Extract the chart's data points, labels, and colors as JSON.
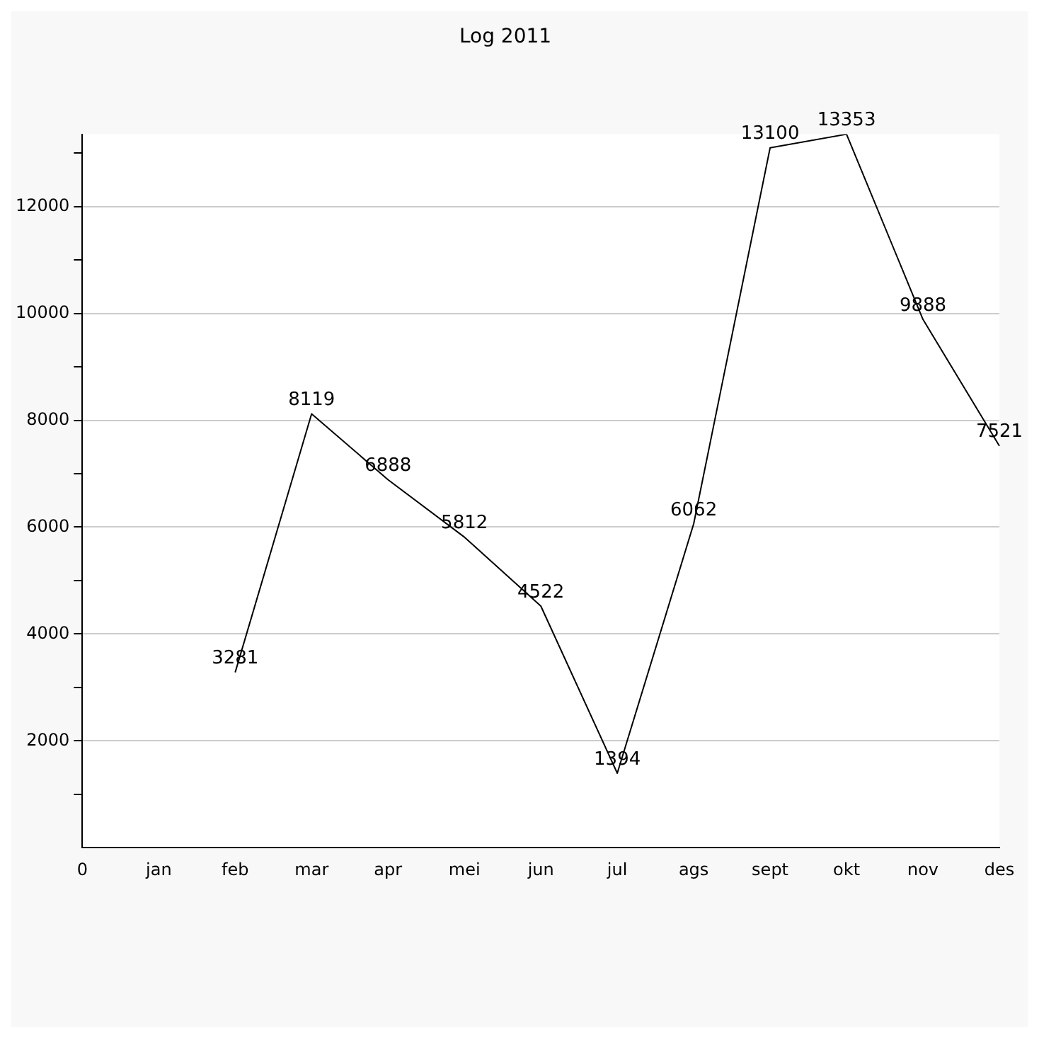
{
  "chart_data": {
    "type": "line",
    "title": "Log 2011",
    "categories": [
      "0",
      "jan",
      "feb",
      "mar",
      "apr",
      "mei",
      "jun",
      "jul",
      "ags",
      "sept",
      "okt",
      "nov",
      "des"
    ],
    "series": [
      {
        "color": "#000000",
        "values": [
          null,
          null,
          3281,
          8119,
          6888,
          5812,
          4522,
          1394,
          6062,
          13100,
          13353,
          9888,
          7521
        ]
      }
    ],
    "ylim": [
      0,
      13353
    ],
    "yticks": [
      {
        "value": 1000,
        "label": null
      },
      2000,
      {
        "value": 3000,
        "label": null
      },
      4000,
      {
        "value": 5000,
        "label": null
      },
      6000,
      {
        "value": 7000,
        "label": null
      },
      8000,
      {
        "value": 9000,
        "label": null
      },
      10000,
      {
        "value": 11000,
        "label": null
      },
      12000,
      {
        "value": 13000,
        "label": null
      }
    ],
    "grid": "y",
    "legend": false,
    "marker": "none",
    "line_style": "solid",
    "data_labels": true
  }
}
